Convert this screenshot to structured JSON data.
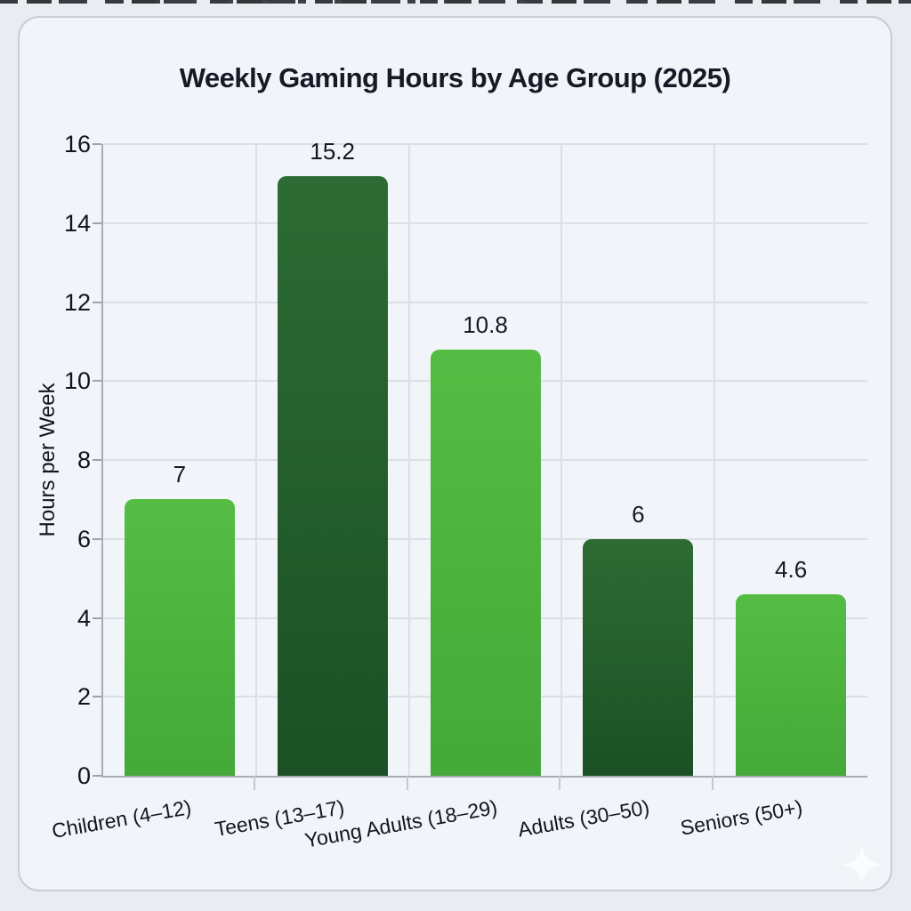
{
  "chart_data": {
    "type": "bar",
    "title": "Weekly Gaming Hours by Age Group (2025)",
    "ylabel": "Hours per Week",
    "xlabel": "",
    "categories": [
      "Children (4–12)",
      "Teens (13–17)",
      "Young Adults (18–29)",
      "Adults (30–50)",
      "Seniors (50+)"
    ],
    "values": [
      7,
      15.2,
      10.8,
      6,
      4.6
    ],
    "value_labels": [
      "7",
      "15.2",
      "10.8",
      "6",
      "4.6"
    ],
    "ylim": [
      0,
      16
    ],
    "yticks": [
      0,
      2,
      4,
      6,
      8,
      10,
      12,
      14,
      16
    ],
    "grid": true,
    "legend": "none",
    "bar_color_keys": [
      "light",
      "dark",
      "light",
      "dark",
      "light"
    ],
    "colors": {
      "light": {
        "top": "#55bd44",
        "bottom": "#44a938"
      },
      "dark": {
        "top": "#2e6b34",
        "bottom": "#1b5125"
      }
    },
    "axis_color": "#a6adb6",
    "grid_color": "#dbe0e6",
    "background": "#f1f4f8"
  }
}
